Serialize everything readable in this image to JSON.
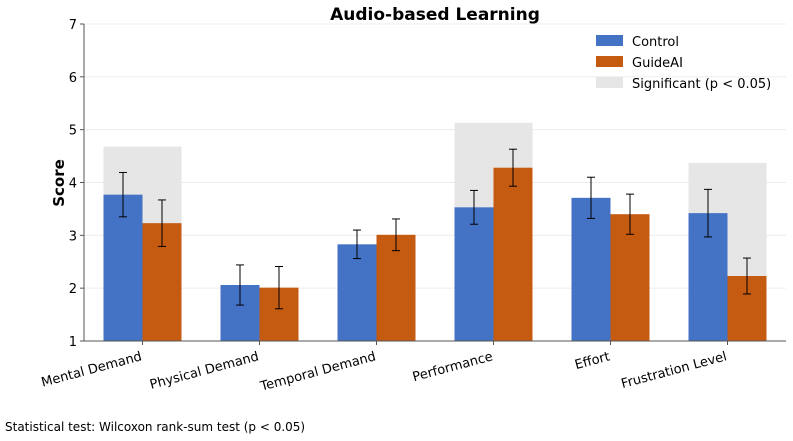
{
  "chart_data": {
    "type": "bar",
    "title": "Audio-based Learning",
    "xlabel": "",
    "ylabel": "Score",
    "ylim": [
      1,
      7
    ],
    "yticks": [
      "1",
      "2",
      "3",
      "4",
      "5",
      "6",
      "7"
    ],
    "grid": true,
    "legend_position": "top-right",
    "categories": [
      "Mental Demand",
      "Physical Demand",
      "Temporal Demand",
      "Performance",
      "Effort",
      "Frustration Level"
    ],
    "series": [
      {
        "name": "Control",
        "color": "#4472c4",
        "values": [
          3.77,
          2.06,
          2.83,
          3.53,
          3.71,
          3.42
        ],
        "error": [
          0.42,
          0.38,
          0.27,
          0.32,
          0.39,
          0.45
        ]
      },
      {
        "name": "GuideAI",
        "color": "#c55a11",
        "values": [
          3.23,
          2.01,
          3.01,
          4.28,
          3.4,
          2.23
        ],
        "error": [
          0.44,
          0.4,
          0.3,
          0.35,
          0.38,
          0.34
        ]
      }
    ],
    "significance": {
      "label": "Significant (p < 0.05)",
      "color": "#e6e6e6",
      "categories": [
        "Mental Demand",
        "Performance",
        "Frustration Level"
      ],
      "heights": [
        4.68,
        5.13,
        4.37
      ]
    }
  },
  "footnote": "Statistical test: Wilcoxon rank-sum test (p < 0.05)"
}
